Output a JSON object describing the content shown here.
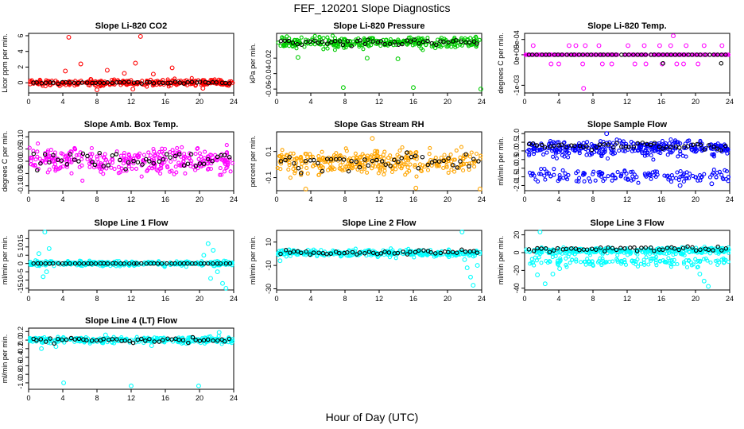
{
  "figure": {
    "title": "FEF_120201  Slope Diagnostics",
    "xlabel": "Hour of Day (UTC)"
  },
  "chart_data": [
    {
      "type": "scatter",
      "title": "Slope Li-820 CO2",
      "ylabel": "Licor ppm per min.",
      "xlim": [
        0,
        24
      ],
      "ylim": [
        -1.3,
        6.3
      ],
      "xticks": [
        0,
        4,
        8,
        12,
        16,
        20,
        24
      ],
      "yticks": [
        0,
        2,
        4,
        6
      ],
      "ytick_labels": [
        "0",
        "2",
        "4",
        "6"
      ],
      "color": "#ff0000",
      "cloud": {
        "center": 0,
        "spread": 0.35
      },
      "black_center": 0,
      "black_spread": 0.08,
      "outliers": [
        [
          4.7,
          5.8
        ],
        [
          13.1,
          5.9
        ],
        [
          4.3,
          1.5
        ],
        [
          6.1,
          2.4
        ],
        [
          9.2,
          1.6
        ],
        [
          11.2,
          1.2
        ],
        [
          12.5,
          2.5
        ],
        [
          14.6,
          1.1
        ],
        [
          16.8,
          1.9
        ],
        [
          8.0,
          -0.9
        ],
        [
          12.2,
          -0.8
        ],
        [
          20.4,
          -0.7
        ]
      ]
    },
    {
      "type": "scatter",
      "title": "Slope Li-820 Pressure",
      "ylabel": "kPa per min.",
      "xlim": [
        0,
        24
      ],
      "ylim": [
        -0.065,
        0.012
      ],
      "xticks": [
        0,
        4,
        8,
        12,
        16,
        20,
        24
      ],
      "yticks": [
        -0.06,
        -0.04,
        -0.02
      ],
      "ytick_labels": [
        "-0.06",
        "-0.04",
        "-0.02"
      ],
      "color": "#00cc00",
      "cloud": {
        "center": 0,
        "spread": 0.006
      },
      "black_center": 0,
      "black_spread": 0.003,
      "outliers": [
        [
          7.8,
          -0.058
        ],
        [
          16.0,
          -0.058
        ],
        [
          23.9,
          -0.06
        ],
        [
          2.5,
          -0.019
        ],
        [
          10.6,
          -0.02
        ],
        [
          14.2,
          -0.021
        ]
      ]
    },
    {
      "type": "scatter",
      "title": "Slope Li-820 Temp.",
      "ylabel": "degrees C per min.",
      "xlim": [
        0,
        24
      ],
      "ylim": [
        -0.00125,
        0.0007
      ],
      "xticks": [
        0,
        4,
        8,
        12,
        16,
        20,
        24
      ],
      "yticks": [
        -0.001,
        0,
        0.0005
      ],
      "ytick_labels": [
        "-1e-03",
        "0e+00",
        "5e-04"
      ],
      "color": "#ff00ff",
      "discrete": true,
      "levels": [
        0.0003,
        -0.0003,
        -0.001
      ],
      "outliers": [
        [
          1.0,
          0.0003
        ],
        [
          5.2,
          0.0003
        ],
        [
          6.0,
          0.0003
        ],
        [
          7.1,
          0.0003
        ],
        [
          8.7,
          0.0003
        ],
        [
          12.1,
          0.0003
        ],
        [
          14.0,
          0.0003
        ],
        [
          15.8,
          0.0003
        ],
        [
          17.1,
          0.0003
        ],
        [
          18.9,
          0.0003
        ],
        [
          21.0,
          0.0003
        ],
        [
          23.1,
          0.0003
        ],
        [
          3.1,
          -0.0003
        ],
        [
          4.0,
          -0.0003
        ],
        [
          6.8,
          -0.0003
        ],
        [
          9.1,
          -0.0003
        ],
        [
          10.2,
          -0.0003
        ],
        [
          12.9,
          -0.0003
        ],
        [
          14.2,
          -0.0003
        ],
        [
          16.1,
          -0.0003
        ],
        [
          17.8,
          -0.0003
        ],
        [
          18.6,
          -0.0003
        ],
        [
          20.3,
          -0.0003
        ],
        [
          6.9,
          -0.0011
        ],
        [
          17.4,
          0.00062
        ]
      ]
    },
    {
      "type": "scatter",
      "title": "Slope Amb. Box Temp.",
      "ylabel": "degrees C per min.",
      "xlim": [
        0,
        24
      ],
      "ylim": [
        -0.12,
        0.12
      ],
      "xticks": [
        0,
        4,
        8,
        12,
        16,
        20,
        24
      ],
      "yticks": [
        -0.1,
        -0.05,
        0,
        0.05,
        0.1
      ],
      "ytick_labels": [
        "-0.10",
        "-0.05",
        "0.00",
        "0.05",
        "0.10"
      ],
      "color": "#ff00ff",
      "cloud": {
        "center": 0.002,
        "spread": 0.045
      },
      "black_center": 0.005,
      "black_spread": 0.03,
      "outliers": []
    },
    {
      "type": "scatter",
      "title": "Slope Gas Stream RH",
      "ylabel": "percent per min.",
      "xlim": [
        0,
        24
      ],
      "ylim": [
        -0.2,
        0.25
      ],
      "xticks": [
        0,
        4,
        8,
        12,
        16,
        20,
        24
      ],
      "yticks": [
        -0.1,
        0.1
      ],
      "ytick_labels": [
        "-0.1",
        "0.1"
      ],
      "color": "#ffa500",
      "cloud": {
        "center": 0.02,
        "spread": 0.07
      },
      "black_center": 0.01,
      "black_spread": 0.07,
      "outliers": [
        [
          3.4,
          -0.19
        ],
        [
          11.2,
          0.2
        ],
        [
          16.3,
          -0.18
        ],
        [
          23.8,
          -0.19
        ]
      ]
    },
    {
      "type": "scatter",
      "title": "Slope Sample Flow",
      "ylabel": "ml/min per min.",
      "xlim": [
        0,
        24
      ],
      "ylim": [
        -2.3,
        1.1
      ],
      "xticks": [
        0,
        4,
        8,
        12,
        16,
        20,
        24
      ],
      "yticks": [
        -2.0,
        -1.5,
        -1.0,
        -0.5,
        0.0,
        0.5,
        1.0
      ],
      "ytick_labels": [
        "-2.0",
        "-1.5",
        "-1.0",
        "-0.5",
        "0.0",
        "0.5",
        "1.0"
      ],
      "color": "#0000ff",
      "cloud": {
        "center": 0.15,
        "spread": 0.35
      },
      "cloud2": {
        "center": -1.45,
        "spread": 0.3
      },
      "black_center": 0.3,
      "black_spread": 0.2,
      "outliers": [
        [
          9.6,
          1.0
        ],
        [
          18.2,
          -2.0
        ],
        [
          21.9,
          -1.9
        ]
      ]
    },
    {
      "type": "scatter",
      "title": "Slope Line 1 Flow",
      "ylabel": "ml/min per min.",
      "xlim": [
        0,
        24
      ],
      "ylim": [
        -16,
        20
      ],
      "xticks": [
        0,
        4,
        8,
        12,
        16,
        20,
        24
      ],
      "yticks": [
        -15,
        -10,
        -5,
        0,
        5,
        10,
        15
      ],
      "ytick_labels": [
        "-15",
        "-10",
        "-5",
        "0",
        "5",
        "10",
        "15"
      ],
      "color": "#00ffff",
      "cloud": {
        "center": 0,
        "spread": 1.2
      },
      "black_center": 0,
      "black_spread": 0.05,
      "outliers": [
        [
          1.9,
          19
        ],
        [
          1.7,
          -8
        ],
        [
          2.1,
          -5
        ],
        [
          1.2,
          6
        ],
        [
          2.4,
          9
        ],
        [
          21.0,
          12
        ],
        [
          21.6,
          8
        ],
        [
          22.1,
          -5
        ],
        [
          22.7,
          -12
        ],
        [
          23.1,
          -15
        ],
        [
          21.3,
          -9
        ],
        [
          20.5,
          5
        ]
      ]
    },
    {
      "type": "scatter",
      "title": "Slope Line 2 Flow",
      "ylabel": "ml/min per min.",
      "xlim": [
        0,
        24
      ],
      "ylim": [
        -31,
        20
      ],
      "xticks": [
        0,
        4,
        8,
        12,
        16,
        20,
        24
      ],
      "yticks": [
        -30,
        -10,
        10
      ],
      "ytick_labels": [
        "-30",
        "-10",
        "10"
      ],
      "color": "#00ffff",
      "cloud": {
        "center": 0.5,
        "spread": 2.5
      },
      "black_center": 1,
      "black_spread": 1.5,
      "outliers": [
        [
          21.7,
          19
        ],
        [
          22.3,
          -12
        ],
        [
          22.7,
          -20
        ],
        [
          23.0,
          -27
        ],
        [
          22.0,
          -5
        ],
        [
          0.4,
          -6
        ],
        [
          23.5,
          -10
        ]
      ]
    },
    {
      "type": "scatter",
      "title": "Slope Line 3 Flow",
      "ylabel": "ml/min per min.",
      "xlim": [
        0,
        24
      ],
      "ylim": [
        -42,
        25
      ],
      "xticks": [
        0,
        4,
        8,
        12,
        16,
        20,
        24
      ],
      "yticks": [
        -40,
        -20,
        0,
        20
      ],
      "ytick_labels": [
        "-40",
        "-20",
        "0",
        "20"
      ],
      "color": "#00ffff",
      "cloud": {
        "center": 2,
        "spread": 3
      },
      "cloud2": {
        "center": -10,
        "spread": 4
      },
      "black_center": 4,
      "black_spread": 2,
      "outliers": [
        [
          1.8,
          24
        ],
        [
          1.5,
          -25
        ],
        [
          2.4,
          -35
        ],
        [
          3.3,
          -24
        ],
        [
          20.5,
          -24
        ],
        [
          21.0,
          -32
        ],
        [
          21.5,
          -38
        ],
        [
          4.1,
          -18
        ]
      ]
    },
    {
      "type": "scatter",
      "title": "Slope Line 4 (LT) Flow",
      "ylabel": "ml/min per min.",
      "xlim": [
        0,
        24
      ],
      "ylim": [
        -1.15,
        0.28
      ],
      "xticks": [
        0,
        4,
        8,
        12,
        16,
        20,
        24
      ],
      "yticks": [
        -1.0,
        -0.8,
        -0.6,
        -0.4,
        -0.2,
        0.0,
        0.2
      ],
      "ytick_labels": [
        "-1.0",
        "-0.8",
        "-0.6",
        "-0.4",
        "-0.2",
        "0.0",
        "0.2"
      ],
      "color": "#00ffff",
      "cloud": {
        "center": 0,
        "spread": 0.06
      },
      "black_center": 0,
      "black_spread": 0.05,
      "outliers": [
        [
          4.1,
          -1.0
        ],
        [
          12.0,
          -1.07
        ],
        [
          19.9,
          -1.07
        ],
        [
          1.5,
          -0.2
        ],
        [
          3.2,
          -0.15
        ],
        [
          22.3,
          0.18
        ],
        [
          9.0,
          0.12
        ],
        [
          14.4,
          -0.13
        ]
      ]
    }
  ]
}
